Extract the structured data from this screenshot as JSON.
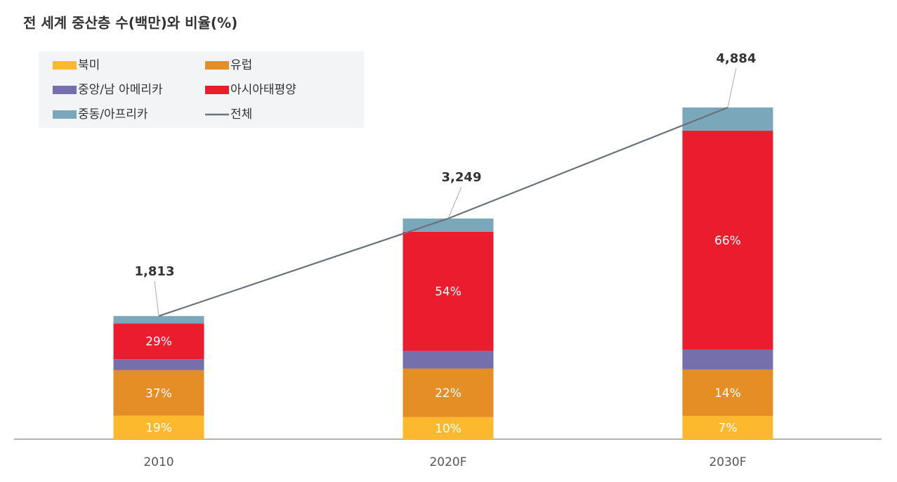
{
  "chart_data": {
    "type": "bar",
    "stacked": true,
    "title": "전 세계 중산층 수(백만)와 비율(%)",
    "categories": [
      "2010",
      "2020F",
      "2030F"
    ],
    "series": [
      {
        "name": "북미",
        "color": "#fdb92e",
        "values": [
          19,
          10,
          7
        ],
        "value_labels": [
          "19%",
          "10%",
          "7%"
        ]
      },
      {
        "name": "유럽",
        "color": "#e58e26",
        "values": [
          37,
          22,
          14
        ],
        "value_labels": [
          "37%",
          "22%",
          "14%"
        ]
      },
      {
        "name": "중앙/남 아메리카",
        "color": "#7570ac",
        "values": [
          9,
          8,
          6
        ],
        "value_labels": [
          null,
          null,
          null
        ]
      },
      {
        "name": "아시아태평양",
        "color": "#ec1c2f",
        "values": [
          29,
          54,
          66
        ],
        "value_labels": [
          "29%",
          "54%",
          "66%"
        ]
      },
      {
        "name": "중동/아프리카",
        "color": "#7ba7bb",
        "values": [
          6,
          6,
          7
        ],
        "value_labels": [
          null,
          null,
          null
        ]
      },
      {
        "name": "전체",
        "type": "line",
        "color": "#6b737a",
        "values": [
          1813,
          3249,
          4884
        ],
        "value_labels": [
          "1,813",
          "3,249",
          "4,884"
        ]
      }
    ]
  }
}
